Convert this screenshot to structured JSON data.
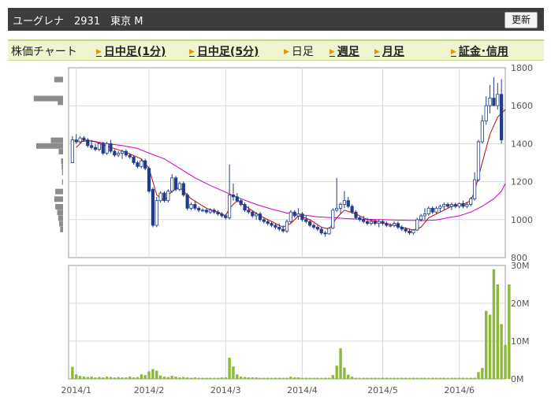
{
  "header": {
    "title": "ユーグレナ　2931　東京 M",
    "refresh_label": "更新"
  },
  "tabs": [
    {
      "label": "株価チャート",
      "link": false,
      "arrow": false
    },
    {
      "label": "日中足(1分)",
      "link": true,
      "arrow": true
    },
    {
      "label": "日中足(5分)",
      "link": true,
      "arrow": true
    },
    {
      "label": "日足",
      "link": false,
      "arrow": true
    },
    {
      "label": "週足",
      "link": true,
      "arrow": true
    },
    {
      "label": "月足",
      "link": true,
      "arrow": true
    },
    {
      "label": "証金･信用",
      "link": true,
      "arrow": true
    }
  ],
  "chart_data": {
    "type": "candlestick",
    "colors": {
      "up": "#ffffff",
      "down": "#1f3d8a",
      "ma_short": "#cc0000",
      "ma_long": "#cc00cc",
      "volume": "#8db83a",
      "profile": "#8c8c8c",
      "grid": "#d9d9d9"
    },
    "price_axis": {
      "min": 800,
      "max": 1800,
      "ticks": [
        800,
        1000,
        1200,
        1400,
        1600,
        1800
      ]
    },
    "volume_axis": {
      "min": 0,
      "max": 30,
      "unit": "M",
      "ticks": [
        {
          "v": 0,
          "label": "0M"
        },
        {
          "v": 10,
          "label": "10M"
        },
        {
          "v": 20,
          "label": "20M"
        },
        {
          "v": 30,
          "label": "30M"
        }
      ]
    },
    "x_labels": [
      {
        "i": 1,
        "label": "2014/1"
      },
      {
        "i": 20,
        "label": "2014/2"
      },
      {
        "i": 40,
        "label": "2014/3"
      },
      {
        "i": 60,
        "label": "2014/4"
      },
      {
        "i": 81,
        "label": "2014/5"
      },
      {
        "i": 101,
        "label": "2014/6"
      }
    ],
    "candles": [
      [
        1300,
        1440,
        1300,
        1420
      ],
      [
        1420,
        1450,
        1400,
        1410
      ],
      [
        1410,
        1440,
        1400,
        1430
      ],
      [
        1430,
        1440,
        1410,
        1420
      ],
      [
        1420,
        1430,
        1380,
        1390
      ],
      [
        1390,
        1420,
        1370,
        1380
      ],
      [
        1380,
        1400,
        1360,
        1370
      ],
      [
        1370,
        1410,
        1360,
        1400
      ],
      [
        1400,
        1410,
        1340,
        1350
      ],
      [
        1350,
        1410,
        1340,
        1400
      ],
      [
        1400,
        1420,
        1350,
        1360
      ],
      [
        1360,
        1370,
        1330,
        1340
      ],
      [
        1340,
        1360,
        1330,
        1350
      ],
      [
        1350,
        1370,
        1320,
        1360
      ],
      [
        1360,
        1370,
        1330,
        1340
      ],
      [
        1340,
        1350,
        1320,
        1330
      ],
      [
        1330,
        1340,
        1290,
        1300
      ],
      [
        1300,
        1310,
        1270,
        1280
      ],
      [
        1280,
        1320,
        1270,
        1310
      ],
      [
        1310,
        1320,
        1260,
        1270
      ],
      [
        1270,
        1280,
        1140,
        1150
      ],
      [
        1160,
        1170,
        960,
        970
      ],
      [
        970,
        1120,
        960,
        1100
      ],
      [
        1100,
        1150,
        1090,
        1140
      ],
      [
        1140,
        1150,
        1090,
        1100
      ],
      [
        1100,
        1160,
        1090,
        1150
      ],
      [
        1150,
        1240,
        1140,
        1220
      ],
      [
        1220,
        1230,
        1150,
        1160
      ],
      [
        1160,
        1200,
        1150,
        1190
      ],
      [
        1190,
        1200,
        1120,
        1130
      ],
      [
        1130,
        1140,
        1050,
        1060
      ],
      [
        1060,
        1090,
        1050,
        1080
      ],
      [
        1080,
        1100,
        1050,
        1060
      ],
      [
        1060,
        1070,
        1040,
        1050
      ],
      [
        1050,
        1060,
        1040,
        1050
      ],
      [
        1050,
        1060,
        1030,
        1040
      ],
      [
        1040,
        1060,
        1030,
        1050
      ],
      [
        1050,
        1060,
        1030,
        1040
      ],
      [
        1040,
        1050,
        1020,
        1030
      ],
      [
        1030,
        1040,
        1010,
        1020
      ],
      [
        1020,
        1030,
        1000,
        1010
      ],
      [
        1010,
        1290,
        1000,
        1130
      ],
      [
        1130,
        1190,
        1100,
        1120
      ],
      [
        1120,
        1140,
        1090,
        1100
      ],
      [
        1100,
        1110,
        1070,
        1080
      ],
      [
        1080,
        1090,
        1040,
        1050
      ],
      [
        1050,
        1070,
        1030,
        1040
      ],
      [
        1040,
        1050,
        1010,
        1020
      ],
      [
        1020,
        1040,
        1000,
        1030
      ],
      [
        1030,
        1040,
        990,
        1000
      ],
      [
        1000,
        1010,
        980,
        990
      ],
      [
        990,
        1000,
        970,
        980
      ],
      [
        980,
        990,
        960,
        970
      ],
      [
        970,
        980,
        950,
        960
      ],
      [
        960,
        980,
        940,
        950
      ],
      [
        950,
        970,
        930,
        940
      ],
      [
        940,
        1000,
        930,
        990
      ],
      [
        990,
        1050,
        980,
        1040
      ],
      [
        1040,
        1050,
        1010,
        1020
      ],
      [
        1020,
        1060,
        1000,
        1030
      ],
      [
        1030,
        1040,
        990,
        1000
      ],
      [
        1000,
        1020,
        980,
        990
      ],
      [
        990,
        1000,
        960,
        970
      ],
      [
        970,
        980,
        950,
        960
      ],
      [
        960,
        970,
        940,
        950
      ],
      [
        950,
        960,
        920,
        930
      ],
      [
        930,
        940,
        910,
        925
      ],
      [
        925,
        960,
        920,
        955
      ],
      [
        955,
        1060,
        950,
        1050
      ],
      [
        1050,
        1220,
        1040,
        1060
      ],
      [
        1060,
        1090,
        1030,
        1080
      ],
      [
        1080,
        1150,
        1060,
        1100
      ],
      [
        1100,
        1120,
        1060,
        1070
      ],
      [
        1070,
        1080,
        1030,
        1040
      ],
      [
        1040,
        1050,
        1000,
        1010
      ],
      [
        1010,
        1020,
        990,
        1000
      ],
      [
        1000,
        1020,
        980,
        990
      ],
      [
        990,
        1010,
        970,
        980
      ],
      [
        980,
        1000,
        970,
        990
      ],
      [
        990,
        1000,
        970,
        980
      ],
      [
        980,
        1000,
        960,
        990
      ],
      [
        990,
        1000,
        970,
        980
      ],
      [
        980,
        990,
        960,
        970
      ],
      [
        970,
        980,
        960,
        970
      ],
      [
        970,
        990,
        960,
        980
      ],
      [
        980,
        990,
        950,
        960
      ],
      [
        960,
        970,
        940,
        950
      ],
      [
        950,
        960,
        930,
        940
      ],
      [
        940,
        950,
        920,
        930
      ],
      [
        930,
        950,
        920,
        945
      ],
      [
        945,
        1010,
        940,
        1000
      ],
      [
        1000,
        1030,
        990,
        1020
      ],
      [
        1020,
        1060,
        1000,
        1030
      ],
      [
        1030,
        1070,
        1020,
        1060
      ],
      [
        1060,
        1070,
        1030,
        1040
      ],
      [
        1040,
        1070,
        1030,
        1060
      ],
      [
        1060,
        1080,
        1040,
        1070
      ],
      [
        1070,
        1090,
        1050,
        1080
      ],
      [
        1080,
        1090,
        1060,
        1070
      ],
      [
        1070,
        1090,
        1050,
        1080
      ],
      [
        1080,
        1090,
        1060,
        1070
      ],
      [
        1070,
        1090,
        1060,
        1085
      ],
      [
        1085,
        1100,
        1060,
        1070
      ],
      [
        1070,
        1090,
        1060,
        1080
      ],
      [
        1080,
        1120,
        1070,
        1110
      ],
      [
        1110,
        1250,
        1100,
        1210
      ],
      [
        1210,
        1420,
        1200,
        1410
      ],
      [
        1410,
        1550,
        1400,
        1520
      ],
      [
        1520,
        1650,
        1500,
        1600
      ],
      [
        1600,
        1710,
        1560,
        1640
      ],
      [
        1640,
        1750,
        1600,
        1600
      ],
      [
        1600,
        1720,
        1580,
        1660
      ],
      [
        1660,
        1740,
        1400,
        1420
      ]
    ],
    "ma_short": [
      [
        1,
        1380
      ],
      [
        3,
        1420
      ],
      [
        6,
        1410
      ],
      [
        10,
        1380
      ],
      [
        14,
        1355
      ],
      [
        18,
        1320
      ],
      [
        20,
        1270
      ],
      [
        22,
        1130
      ],
      [
        24,
        1100
      ],
      [
        26,
        1150
      ],
      [
        28,
        1170
      ],
      [
        31,
        1110
      ],
      [
        35,
        1060
      ],
      [
        38,
        1040
      ],
      [
        40,
        1020
      ],
      [
        41,
        1060
      ],
      [
        43,
        1100
      ],
      [
        46,
        1060
      ],
      [
        49,
        1020
      ],
      [
        52,
        990
      ],
      [
        55,
        960
      ],
      [
        57,
        980
      ],
      [
        59,
        1020
      ],
      [
        62,
        1000
      ],
      [
        65,
        960
      ],
      [
        67,
        950
      ],
      [
        69,
        1010
      ],
      [
        71,
        1050
      ],
      [
        74,
        1030
      ],
      [
        77,
        1000
      ],
      [
        80,
        990
      ],
      [
        83,
        975
      ],
      [
        86,
        960
      ],
      [
        89,
        945
      ],
      [
        91,
        960
      ],
      [
        93,
        1010
      ],
      [
        96,
        1040
      ],
      [
        99,
        1070
      ],
      [
        102,
        1080
      ],
      [
        104,
        1100
      ],
      [
        105,
        1150
      ],
      [
        107,
        1300
      ],
      [
        109,
        1450
      ],
      [
        111,
        1540
      ],
      [
        113,
        1580
      ]
    ],
    "ma_long": [
      [
        1,
        1410
      ],
      [
        5,
        1415
      ],
      [
        9,
        1400
      ],
      [
        13,
        1390
      ],
      [
        17,
        1375
      ],
      [
        20,
        1350
      ],
      [
        24,
        1320
      ],
      [
        28,
        1270
      ],
      [
        32,
        1220
      ],
      [
        36,
        1180
      ],
      [
        40,
        1145
      ],
      [
        44,
        1110
      ],
      [
        48,
        1080
      ],
      [
        52,
        1055
      ],
      [
        56,
        1035
      ],
      [
        60,
        1025
      ],
      [
        64,
        1015
      ],
      [
        68,
        1010
      ],
      [
        72,
        1005
      ],
      [
        76,
        1002
      ],
      [
        80,
        1000
      ],
      [
        84,
        998
      ],
      [
        88,
        996
      ],
      [
        92,
        995
      ],
      [
        95,
        998
      ],
      [
        98,
        1010
      ],
      [
        101,
        1020
      ],
      [
        104,
        1040
      ],
      [
        107,
        1070
      ],
      [
        110,
        1110
      ],
      [
        112,
        1150
      ],
      [
        113,
        1190
      ]
    ],
    "volume": [
      3.2,
      1.2,
      0.8,
      0.6,
      0.5,
      0.6,
      0.4,
      0.5,
      0.4,
      0.6,
      0.5,
      0.4,
      0.5,
      0.4,
      0.4,
      0.6,
      0.4,
      0.5,
      1.2,
      1.0,
      2.0,
      2.6,
      2.2,
      0.9,
      0.6,
      0.5,
      0.8,
      0.6,
      0.4,
      0.5,
      0.4,
      0.3,
      0.4,
      0.3,
      0.3,
      0.3,
      0.3,
      0.3,
      0.3,
      0.4,
      0.4,
      5.6,
      3.3,
      1.2,
      0.6,
      0.5,
      0.4,
      0.4,
      0.4,
      0.3,
      0.3,
      0.3,
      0.3,
      0.3,
      0.3,
      0.3,
      0.3,
      0.6,
      0.4,
      0.4,
      0.3,
      0.3,
      0.3,
      0.3,
      0.3,
      0.3,
      0.3,
      0.3,
      1.0,
      3.5,
      8.1,
      3.0,
      1.1,
      0.6,
      0.3,
      0.3,
      0.3,
      0.3,
      0.3,
      0.3,
      0.3,
      0.3,
      0.3,
      0.3,
      0.3,
      0.3,
      0.3,
      0.3,
      0.3,
      0.3,
      0.3,
      0.3,
      0.3,
      0.3,
      0.3,
      0.3,
      0.3,
      0.3,
      0.3,
      0.3,
      0.3,
      0.3,
      0.3,
      0.3,
      0.3,
      0.3,
      1.8,
      2.9,
      18.0,
      17.0,
      29.0,
      25.0,
      14.5,
      9.0,
      25.0
    ],
    "volume_profile": [
      [
        1740,
        0.18
      ],
      [
        1640,
        0.6
      ],
      [
        1620,
        0.11
      ],
      [
        1420,
        0.25
      ],
      [
        1390,
        0.55
      ],
      [
        1360,
        0.09
      ],
      [
        1310,
        0.04
      ],
      [
        1280,
        0.03
      ],
      [
        1250,
        0.02
      ],
      [
        1200,
        0.02
      ],
      [
        1150,
        0.16
      ],
      [
        1110,
        0.18
      ],
      [
        1070,
        0.16
      ],
      [
        1040,
        0.12
      ],
      [
        1010,
        0.1
      ],
      [
        980,
        0.08
      ],
      [
        950,
        0.06
      ]
    ]
  }
}
